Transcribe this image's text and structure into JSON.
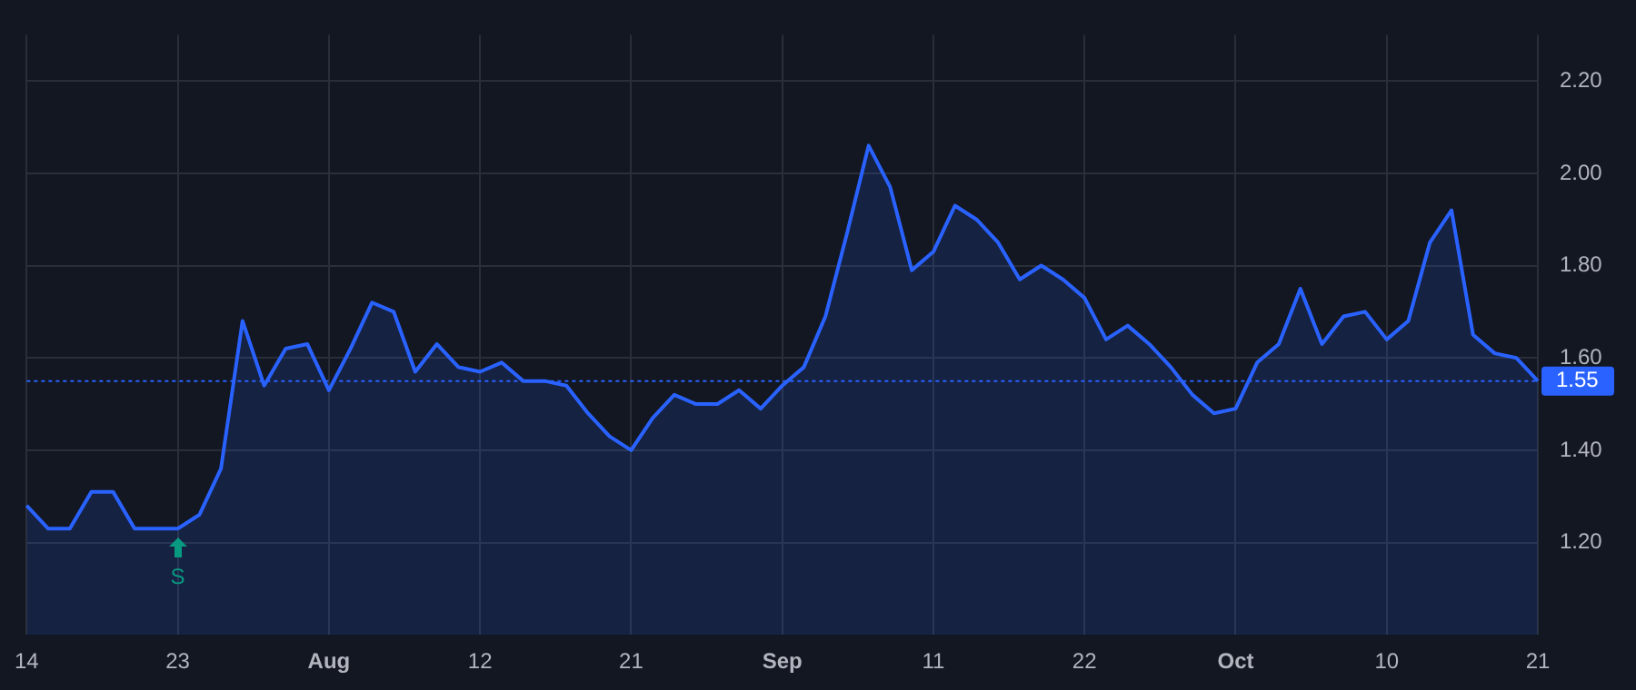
{
  "chart_data": {
    "type": "area",
    "categories": [
      "14",
      null,
      null,
      null,
      null,
      null,
      null,
      "23",
      null,
      null,
      null,
      null,
      null,
      null,
      "Aug",
      null,
      null,
      null,
      null,
      null,
      null,
      "12",
      null,
      null,
      null,
      null,
      null,
      null,
      "21",
      null,
      null,
      null,
      null,
      null,
      null,
      "Sep",
      null,
      null,
      null,
      null,
      null,
      null,
      "11",
      null,
      null,
      null,
      null,
      null,
      null,
      "22",
      null,
      null,
      null,
      null,
      null,
      null,
      "Oct",
      null,
      null,
      null,
      null,
      null,
      null,
      "10",
      null,
      null,
      null,
      null,
      null,
      null,
      "21"
    ],
    "series": [
      {
        "color": "#2962ff",
        "values": [
          1.28,
          1.23,
          1.23,
          1.31,
          1.31,
          1.23,
          1.23,
          1.23,
          1.26,
          1.36,
          1.68,
          1.54,
          1.62,
          1.63,
          1.53,
          1.62,
          1.72,
          1.7,
          1.57,
          1.63,
          1.58,
          1.57,
          1.59,
          1.55,
          1.55,
          1.54,
          1.48,
          1.43,
          1.4,
          1.47,
          1.52,
          1.5,
          1.5,
          1.53,
          1.49,
          1.54,
          1.58,
          1.69,
          1.87,
          2.06,
          1.97,
          1.79,
          1.83,
          1.93,
          1.9,
          1.85,
          1.77,
          1.8,
          1.77,
          1.73,
          1.64,
          1.67,
          1.63,
          1.58,
          1.52,
          1.48,
          1.49,
          1.59,
          1.63,
          1.75,
          1.63,
          1.69,
          1.7,
          1.64,
          1.68,
          1.85,
          1.92,
          1.65,
          1.61,
          1.6,
          1.55
        ]
      }
    ],
    "ylim": [
      1.0,
      2.3
    ],
    "yticks": [
      {
        "value": 1.2,
        "label": "1.20"
      },
      {
        "value": 1.4,
        "label": "1.40"
      },
      {
        "value": 1.6,
        "label": "1.60"
      },
      {
        "value": 1.8,
        "label": "1.80"
      },
      {
        "value": 2.0,
        "label": "2.00"
      },
      {
        "value": 2.2,
        "label": "2.20"
      }
    ],
    "ref_lines": [
      {
        "axis": "y",
        "value": 1.55,
        "label": "1.55",
        "color": "#2962ff",
        "line_style": "dotted"
      }
    ],
    "annotations": [
      {
        "text": "S",
        "x": "23",
        "y": 1.23
      }
    ],
    "grid": true,
    "legend": false,
    "marker": "none",
    "line_style": "solid"
  }
}
